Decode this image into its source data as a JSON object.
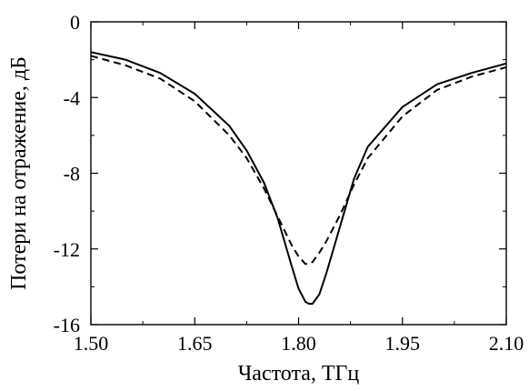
{
  "chart_data": {
    "type": "line",
    "xlabel": "Частота, ТГц",
    "ylabel": "Потери на отражение, дБ",
    "xlim": [
      1.5,
      2.1
    ],
    "ylim": [
      -16,
      0
    ],
    "x_ticks": [
      1.5,
      1.65,
      1.8,
      1.95,
      2.1
    ],
    "x_tick_labels": [
      "1.50",
      "1.65",
      "1.80",
      "1.95",
      "2.10"
    ],
    "y_ticks": [
      0,
      -4,
      -8,
      -12,
      -16
    ],
    "y_tick_labels": [
      "0",
      "-4",
      "-8",
      "-12",
      "-16"
    ],
    "grid": false,
    "series": [
      {
        "style": "solid",
        "color": "#000000",
        "x": [
          1.5,
          1.55,
          1.6,
          1.65,
          1.7,
          1.725,
          1.75,
          1.77,
          1.79,
          1.8,
          1.81,
          1.815,
          1.82,
          1.83,
          1.84,
          1.86,
          1.88,
          1.9,
          1.95,
          2.0,
          2.05,
          2.1
        ],
        "y": [
          -1.6,
          -2.0,
          -2.7,
          -3.8,
          -5.5,
          -6.8,
          -8.5,
          -10.4,
          -12.9,
          -14.1,
          -14.8,
          -14.9,
          -14.9,
          -14.4,
          -13.3,
          -10.8,
          -8.3,
          -6.6,
          -4.5,
          -3.3,
          -2.7,
          -2.2
        ]
      },
      {
        "style": "dashed",
        "color": "#000000",
        "x": [
          1.5,
          1.55,
          1.6,
          1.65,
          1.7,
          1.725,
          1.75,
          1.77,
          1.79,
          1.8,
          1.81,
          1.82,
          1.83,
          1.84,
          1.86,
          1.88,
          1.9,
          1.95,
          2.0,
          2.05,
          2.1
        ],
        "y": [
          -1.8,
          -2.3,
          -3.0,
          -4.2,
          -6.0,
          -7.2,
          -8.8,
          -10.3,
          -11.8,
          -12.4,
          -12.8,
          -12.7,
          -12.2,
          -11.6,
          -10.2,
          -8.6,
          -7.2,
          -5.0,
          -3.6,
          -2.9,
          -2.4
        ]
      }
    ]
  }
}
